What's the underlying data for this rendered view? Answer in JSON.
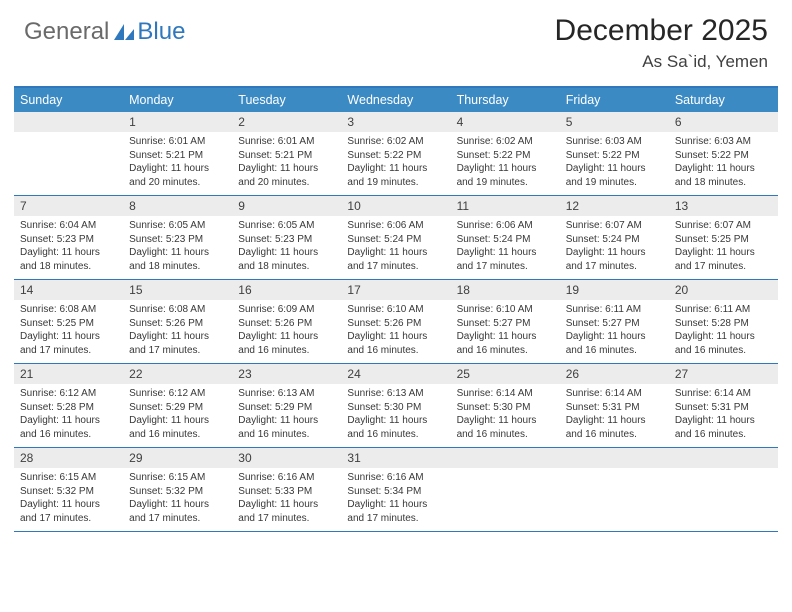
{
  "logo": {
    "part1": "General",
    "part2": "Blue"
  },
  "title": "December 2025",
  "location": "As Sa`id, Yemen",
  "colors": {
    "header_bg": "#3b8ac4",
    "border": "#2f78bd",
    "date_bg": "#ececec",
    "logo_gray": "#6a6a6a",
    "logo_blue": "#2f78bd"
  },
  "day_names": [
    "Sunday",
    "Monday",
    "Tuesday",
    "Wednesday",
    "Thursday",
    "Friday",
    "Saturday"
  ],
  "weeks": [
    [
      {
        "date": "",
        "lines": []
      },
      {
        "date": "1",
        "lines": [
          "Sunrise: 6:01 AM",
          "Sunset: 5:21 PM",
          "Daylight: 11 hours and 20 minutes."
        ]
      },
      {
        "date": "2",
        "lines": [
          "Sunrise: 6:01 AM",
          "Sunset: 5:21 PM",
          "Daylight: 11 hours and 20 minutes."
        ]
      },
      {
        "date": "3",
        "lines": [
          "Sunrise: 6:02 AM",
          "Sunset: 5:22 PM",
          "Daylight: 11 hours and 19 minutes."
        ]
      },
      {
        "date": "4",
        "lines": [
          "Sunrise: 6:02 AM",
          "Sunset: 5:22 PM",
          "Daylight: 11 hours and 19 minutes."
        ]
      },
      {
        "date": "5",
        "lines": [
          "Sunrise: 6:03 AM",
          "Sunset: 5:22 PM",
          "Daylight: 11 hours and 19 minutes."
        ]
      },
      {
        "date": "6",
        "lines": [
          "Sunrise: 6:03 AM",
          "Sunset: 5:22 PM",
          "Daylight: 11 hours and 18 minutes."
        ]
      }
    ],
    [
      {
        "date": "7",
        "lines": [
          "Sunrise: 6:04 AM",
          "Sunset: 5:23 PM",
          "Daylight: 11 hours and 18 minutes."
        ]
      },
      {
        "date": "8",
        "lines": [
          "Sunrise: 6:05 AM",
          "Sunset: 5:23 PM",
          "Daylight: 11 hours and 18 minutes."
        ]
      },
      {
        "date": "9",
        "lines": [
          "Sunrise: 6:05 AM",
          "Sunset: 5:23 PM",
          "Daylight: 11 hours and 18 minutes."
        ]
      },
      {
        "date": "10",
        "lines": [
          "Sunrise: 6:06 AM",
          "Sunset: 5:24 PM",
          "Daylight: 11 hours and 17 minutes."
        ]
      },
      {
        "date": "11",
        "lines": [
          "Sunrise: 6:06 AM",
          "Sunset: 5:24 PM",
          "Daylight: 11 hours and 17 minutes."
        ]
      },
      {
        "date": "12",
        "lines": [
          "Sunrise: 6:07 AM",
          "Sunset: 5:24 PM",
          "Daylight: 11 hours and 17 minutes."
        ]
      },
      {
        "date": "13",
        "lines": [
          "Sunrise: 6:07 AM",
          "Sunset: 5:25 PM",
          "Daylight: 11 hours and 17 minutes."
        ]
      }
    ],
    [
      {
        "date": "14",
        "lines": [
          "Sunrise: 6:08 AM",
          "Sunset: 5:25 PM",
          "Daylight: 11 hours and 17 minutes."
        ]
      },
      {
        "date": "15",
        "lines": [
          "Sunrise: 6:08 AM",
          "Sunset: 5:26 PM",
          "Daylight: 11 hours and 17 minutes."
        ]
      },
      {
        "date": "16",
        "lines": [
          "Sunrise: 6:09 AM",
          "Sunset: 5:26 PM",
          "Daylight: 11 hours and 16 minutes."
        ]
      },
      {
        "date": "17",
        "lines": [
          "Sunrise: 6:10 AM",
          "Sunset: 5:26 PM",
          "Daylight: 11 hours and 16 minutes."
        ]
      },
      {
        "date": "18",
        "lines": [
          "Sunrise: 6:10 AM",
          "Sunset: 5:27 PM",
          "Daylight: 11 hours and 16 minutes."
        ]
      },
      {
        "date": "19",
        "lines": [
          "Sunrise: 6:11 AM",
          "Sunset: 5:27 PM",
          "Daylight: 11 hours and 16 minutes."
        ]
      },
      {
        "date": "20",
        "lines": [
          "Sunrise: 6:11 AM",
          "Sunset: 5:28 PM",
          "Daylight: 11 hours and 16 minutes."
        ]
      }
    ],
    [
      {
        "date": "21",
        "lines": [
          "Sunrise: 6:12 AM",
          "Sunset: 5:28 PM",
          "Daylight: 11 hours and 16 minutes."
        ]
      },
      {
        "date": "22",
        "lines": [
          "Sunrise: 6:12 AM",
          "Sunset: 5:29 PM",
          "Daylight: 11 hours and 16 minutes."
        ]
      },
      {
        "date": "23",
        "lines": [
          "Sunrise: 6:13 AM",
          "Sunset: 5:29 PM",
          "Daylight: 11 hours and 16 minutes."
        ]
      },
      {
        "date": "24",
        "lines": [
          "Sunrise: 6:13 AM",
          "Sunset: 5:30 PM",
          "Daylight: 11 hours and 16 minutes."
        ]
      },
      {
        "date": "25",
        "lines": [
          "Sunrise: 6:14 AM",
          "Sunset: 5:30 PM",
          "Daylight: 11 hours and 16 minutes."
        ]
      },
      {
        "date": "26",
        "lines": [
          "Sunrise: 6:14 AM",
          "Sunset: 5:31 PM",
          "Daylight: 11 hours and 16 minutes."
        ]
      },
      {
        "date": "27",
        "lines": [
          "Sunrise: 6:14 AM",
          "Sunset: 5:31 PM",
          "Daylight: 11 hours and 16 minutes."
        ]
      }
    ],
    [
      {
        "date": "28",
        "lines": [
          "Sunrise: 6:15 AM",
          "Sunset: 5:32 PM",
          "Daylight: 11 hours and 17 minutes."
        ]
      },
      {
        "date": "29",
        "lines": [
          "Sunrise: 6:15 AM",
          "Sunset: 5:32 PM",
          "Daylight: 11 hours and 17 minutes."
        ]
      },
      {
        "date": "30",
        "lines": [
          "Sunrise: 6:16 AM",
          "Sunset: 5:33 PM",
          "Daylight: 11 hours and 17 minutes."
        ]
      },
      {
        "date": "31",
        "lines": [
          "Sunrise: 6:16 AM",
          "Sunset: 5:34 PM",
          "Daylight: 11 hours and 17 minutes."
        ]
      },
      {
        "date": "",
        "lines": []
      },
      {
        "date": "",
        "lines": []
      },
      {
        "date": "",
        "lines": []
      }
    ]
  ]
}
